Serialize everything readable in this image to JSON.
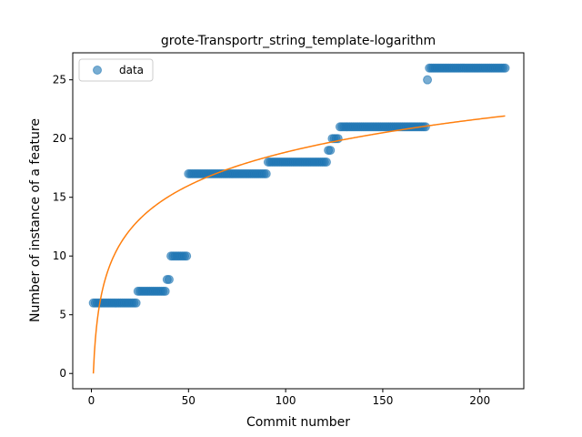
{
  "chart_data": {
    "type": "scatter",
    "title": "grote-Transportr_string_template-logarithm",
    "xlabel": "Commit number",
    "ylabel": "Number of instance of a feature",
    "xlim": [
      -9.6,
      222.6
    ],
    "ylim": [
      -1.3,
      27.3
    ],
    "xticks": [
      0,
      50,
      100,
      150,
      200
    ],
    "xtick_labels": [
      "0",
      "50",
      "100",
      "150",
      "200"
    ],
    "yticks": [
      0,
      5,
      10,
      15,
      20,
      25
    ],
    "ytick_labels": [
      "0",
      "5",
      "10",
      "15",
      "20",
      "25"
    ],
    "grid": false,
    "legend": {
      "position": "top-left",
      "entries": [
        "data"
      ]
    },
    "colors": {
      "data": "#1f77b4",
      "fit": "#ff7f0e"
    },
    "series": [
      {
        "name": "data",
        "style": "markers",
        "segments": [
          {
            "x_start": 1,
            "x_end": 23,
            "y": 6
          },
          {
            "x_start": 24,
            "x_end": 38,
            "y": 7
          },
          {
            "x_start": 39,
            "x_end": 40,
            "y": 8
          },
          {
            "x_start": 41,
            "x_end": 49,
            "y": 10
          },
          {
            "x_start": 50,
            "x_end": 90,
            "y": 17
          },
          {
            "x_start": 91,
            "x_end": 121,
            "y": 18
          },
          {
            "x_start": 122,
            "x_end": 123,
            "y": 19
          },
          {
            "x_start": 124,
            "x_end": 127,
            "y": 20
          },
          {
            "x_start": 128,
            "x_end": 172,
            "y": 21
          },
          {
            "x_start": 173,
            "x_end": 173,
            "y": 25
          },
          {
            "x_start": 174,
            "x_end": 213,
            "y": 26
          }
        ]
      },
      {
        "style": "line",
        "model": "logarithmic",
        "a": 4.09,
        "b": 0,
        "x_range": [
          1,
          213
        ]
      }
    ]
  }
}
